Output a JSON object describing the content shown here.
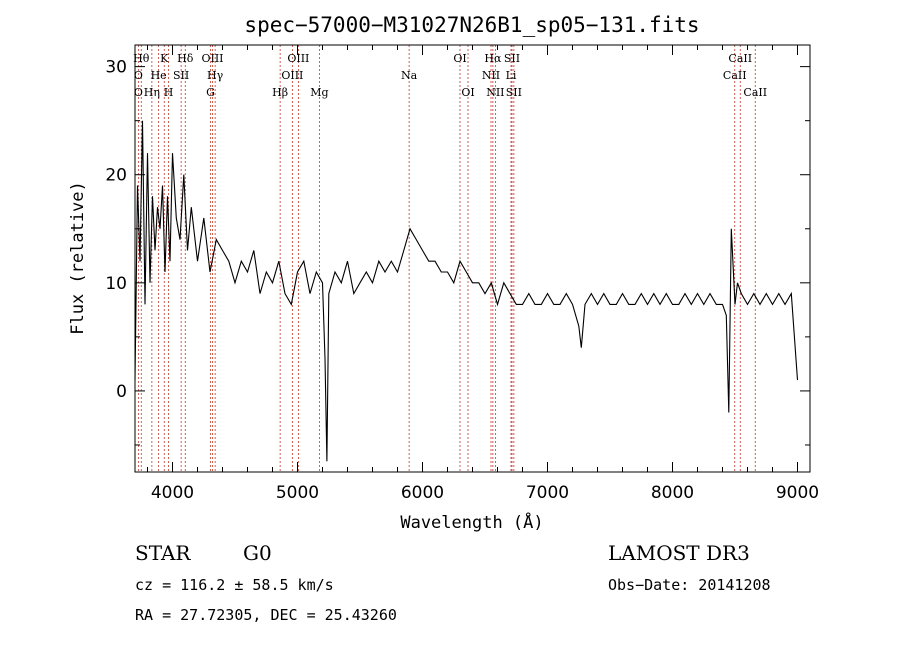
{
  "chart_data": {
    "type": "line",
    "title": "spec−57000−M31027N26B1_sp05−131.fits",
    "xlabel": "Wavelength (Å)",
    "ylabel": "Flux (relative)",
    "xlim": [
      3700,
      9100
    ],
    "ylim": [
      -7.5,
      32
    ],
    "xticks": [
      4000,
      5000,
      6000,
      7000,
      8000,
      9000
    ],
    "yticks": [
      0,
      10,
      20,
      30
    ],
    "series": [
      {
        "name": "flux",
        "x": [
          3700,
          3720,
          3740,
          3760,
          3780,
          3800,
          3820,
          3840,
          3860,
          3880,
          3900,
          3920,
          3940,
          3960,
          3980,
          4000,
          4030,
          4060,
          4090,
          4120,
          4150,
          4200,
          4250,
          4300,
          4350,
          4400,
          4450,
          4500,
          4550,
          4600,
          4650,
          4700,
          4750,
          4800,
          4850,
          4900,
          4950,
          5000,
          5050,
          5100,
          5150,
          5200,
          5220,
          5235,
          5250,
          5300,
          5350,
          5400,
          5450,
          5500,
          5550,
          5600,
          5650,
          5700,
          5750,
          5800,
          5850,
          5900,
          5950,
          6000,
          6050,
          6100,
          6150,
          6200,
          6250,
          6300,
          6350,
          6400,
          6450,
          6500,
          6550,
          6600,
          6650,
          6700,
          6750,
          6800,
          6850,
          6900,
          6950,
          7000,
          7050,
          7100,
          7150,
          7200,
          7250,
          7270,
          7300,
          7350,
          7400,
          7450,
          7500,
          7550,
          7600,
          7650,
          7700,
          7750,
          7800,
          7850,
          7900,
          7950,
          8000,
          8050,
          8100,
          8150,
          8200,
          8250,
          8300,
          8350,
          8400,
          8430,
          8450,
          8470,
          8500,
          8520,
          8550,
          8600,
          8650,
          8700,
          8750,
          8800,
          8850,
          8900,
          8950,
          9000
        ],
        "y": [
          1,
          19,
          12,
          25,
          8,
          22,
          10,
          18,
          13,
          17,
          15,
          19,
          11,
          18,
          12,
          22,
          16,
          14,
          20,
          13,
          17,
          12,
          16,
          11,
          14,
          13,
          12,
          10,
          12,
          11,
          13,
          9,
          11,
          10,
          12,
          9,
          8,
          11,
          12,
          9,
          11,
          10,
          3,
          -6.5,
          9,
          11,
          10,
          12,
          9,
          10,
          11,
          10,
          12,
          11,
          12,
          11,
          13,
          15,
          14,
          13,
          12,
          12,
          11,
          11,
          10,
          12,
          11,
          10,
          10,
          9,
          10,
          8,
          10,
          9,
          8,
          8,
          9,
          8,
          8,
          9,
          8,
          8,
          9,
          8,
          6,
          4,
          8,
          9,
          8,
          9,
          8,
          8,
          9,
          8,
          8,
          9,
          8,
          9,
          8,
          9,
          8,
          8,
          9,
          8,
          9,
          8,
          9,
          8,
          8,
          7,
          -2,
          15,
          8,
          10,
          9,
          8,
          9,
          8,
          9,
          8,
          9,
          8,
          9,
          1
        ]
      }
    ],
    "line_labels": [
      {
        "label": "O",
        "wl": 3727,
        "row": 2
      },
      {
        "label": "O",
        "wl": 3727,
        "row": 3
      },
      {
        "label": "Hθ",
        "wl": 3750,
        "row": 1
      },
      {
        "label": "Hη",
        "wl": 3835,
        "row": 3
      },
      {
        "label": "He",
        "wl": 3889,
        "row": 2
      },
      {
        "label": "K",
        "wl": 3934,
        "row": 1
      },
      {
        "label": "H",
        "wl": 3968,
        "row": 3
      },
      {
        "label": "SII",
        "wl": 4069,
        "row": 2
      },
      {
        "label": "Hδ",
        "wl": 4102,
        "row": 1
      },
      {
        "label": "OIII",
        "wl": 4320,
        "row": 1
      },
      {
        "label": "Hγ",
        "wl": 4341,
        "row": 2
      },
      {
        "label": "G",
        "wl": 4304,
        "row": 3
      },
      {
        "label": "OIII",
        "wl": 5007,
        "row": 1
      },
      {
        "label": "OIII",
        "wl": 4959,
        "row": 2
      },
      {
        "label": "Hβ",
        "wl": 4861,
        "row": 3
      },
      {
        "label": "Mg",
        "wl": 5175,
        "row": 3
      },
      {
        "label": "Na",
        "wl": 5893,
        "row": 2
      },
      {
        "label": "OI",
        "wl": 6300,
        "row": 1
      },
      {
        "label": "OI",
        "wl": 6364,
        "row": 3
      },
      {
        "label": "Hα",
        "wl": 6563,
        "row": 1
      },
      {
        "label": "SII",
        "wl": 6716,
        "row": 1
      },
      {
        "label": "NII",
        "wl": 6548,
        "row": 2
      },
      {
        "label": "Li",
        "wl": 6708,
        "row": 2
      },
      {
        "label": "NII",
        "wl": 6583,
        "row": 3
      },
      {
        "label": "SII",
        "wl": 6731,
        "row": 3
      },
      {
        "label": "CaII",
        "wl": 8542,
        "row": 1
      },
      {
        "label": "CaII",
        "wl": 8498,
        "row": 2
      },
      {
        "label": "CaII",
        "wl": 8662,
        "row": 3
      }
    ]
  },
  "info": {
    "class_label": "STAR",
    "subclass": "G0",
    "survey": "LAMOST DR3",
    "redshift": "cz =  116.2 ±  58.5 km/s",
    "obs_date": "Obs−Date: 20141208",
    "coords": "RA =  27.72305, DEC =  25.43260"
  }
}
